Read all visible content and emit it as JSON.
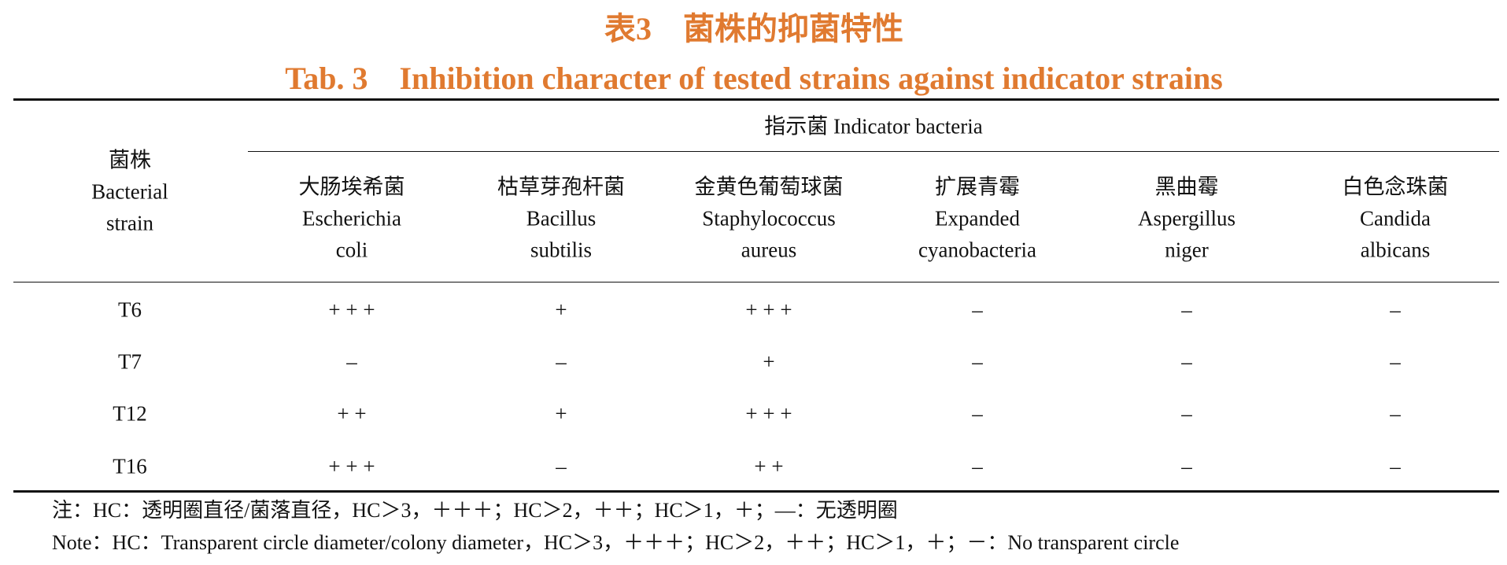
{
  "title_cn": "表3　菌株的抑菌特性",
  "title_en": "Tab. 3　Inhibition character of tested strains against indicator strains",
  "table": {
    "row_header": [
      "菌株",
      "Bacterial",
      "strain"
    ],
    "group_header": "指示菌 Indicator bacteria",
    "columns": [
      [
        "大肠埃希菌",
        "Escherichia",
        "coli"
      ],
      [
        "枯草芽孢杆菌",
        "Bacillus",
        "subtilis"
      ],
      [
        "金黄色葡萄球菌",
        "Staphylococcus",
        "aureus"
      ],
      [
        "扩展青霉",
        "Expanded",
        "cyanobacteria"
      ],
      [
        "黑曲霉",
        "Aspergillus",
        "niger"
      ],
      [
        "白色念珠菌",
        "Candida",
        "albicans"
      ]
    ],
    "rows": [
      [
        "T6",
        "+ + +",
        "+",
        "+ + +",
        "–",
        "–",
        "–"
      ],
      [
        "T7",
        "–",
        "–",
        "+",
        "–",
        "–",
        "–"
      ],
      [
        "T12",
        "+ +",
        "+",
        "+ + +",
        "–",
        "–",
        "–"
      ],
      [
        "T16",
        "+ + +",
        "–",
        "+ +",
        "–",
        "–",
        "–"
      ]
    ]
  },
  "notes": [
    "注：HC：透明圈直径/菌落直径，HC＞3，＋＋＋；HC＞2，＋＋；HC＞1，＋；—：无透明圈",
    "Note：HC：Transparent circle diameter/colony diameter，HC＞3，＋＋＋；HC＞2，＋＋；HC＞1，＋；－：No transparent circle"
  ]
}
